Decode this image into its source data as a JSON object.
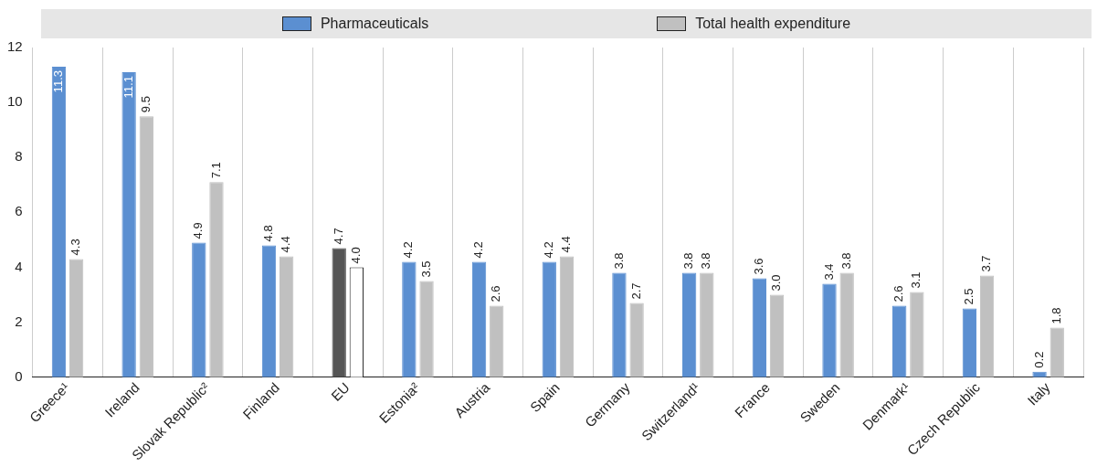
{
  "chart_data": {
    "type": "bar",
    "categories": [
      "Greece¹",
      "Ireland",
      "Slovak Republic²",
      "Finland",
      "EU",
      "Estonia²",
      "Austria",
      "Spain",
      "Germany",
      "Switzerland¹",
      "France",
      "Sweden",
      "Denmark¹",
      "Czech Republic",
      "Italy"
    ],
    "series": [
      {
        "name": "Pharmaceuticals",
        "color": "#5b8fd1",
        "colors": [
          "#5b8fd1",
          "#5b8fd1",
          "#5b8fd1",
          "#5b8fd1",
          "#555555",
          "#5b8fd1",
          "#5b8fd1",
          "#5b8fd1",
          "#5b8fd1",
          "#5b8fd1",
          "#5b8fd1",
          "#5b8fd1",
          "#5b8fd1",
          "#5b8fd1",
          "#5b8fd1"
        ],
        "values": [
          11.3,
          11.1,
          4.9,
          4.8,
          4.7,
          4.2,
          4.2,
          4.2,
          3.8,
          3.8,
          3.6,
          3.4,
          2.6,
          2.5,
          0.2
        ],
        "value_labels": [
          "11.3",
          "11.1",
          "4.9",
          "4.8",
          "4.7",
          "4.2",
          "4.2",
          "4.2",
          "3.8",
          "3.8",
          "3.6",
          "3.4",
          "2.6",
          "2.5",
          "0.2"
        ]
      },
      {
        "name": "Total health expenditure",
        "color": "#c0c0c0",
        "colors": [
          "#c0c0c0",
          "#c0c0c0",
          "#c0c0c0",
          "#c0c0c0",
          "#ffffff",
          "#c0c0c0",
          "#c0c0c0",
          "#c0c0c0",
          "#c0c0c0",
          "#c0c0c0",
          "#c0c0c0",
          "#c0c0c0",
          "#c0c0c0",
          "#c0c0c0",
          "#c0c0c0"
        ],
        "values": [
          4.3,
          9.5,
          7.1,
          4.4,
          4.0,
          3.5,
          2.6,
          4.4,
          2.7,
          3.8,
          3.0,
          3.8,
          3.1,
          3.7,
          1.8
        ],
        "value_labels": [
          "4.3",
          "9.5",
          "7.1",
          "4.4",
          "4.0",
          "3.5",
          "2.6",
          "4.4",
          "2.7",
          "3.8",
          "3.0",
          "3.8",
          "3.1",
          "3.7",
          "1.8"
        ]
      }
    ],
    "ylim": [
      0,
      12
    ],
    "yticks": [
      0,
      2,
      4,
      6,
      8,
      10,
      12
    ],
    "grid": "x",
    "legend": "top"
  }
}
